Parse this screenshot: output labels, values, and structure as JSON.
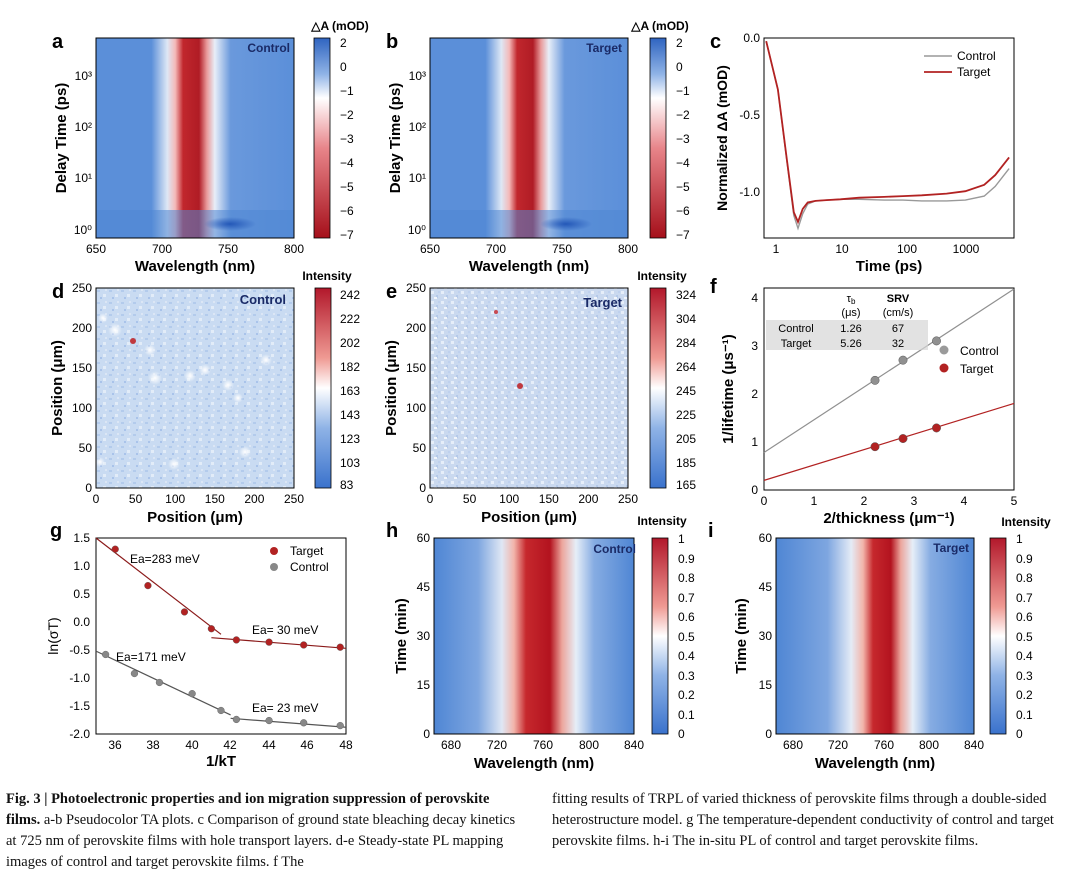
{
  "charts": {
    "a": {
      "letter": "a",
      "cb_title": "△A (mOD)",
      "cb_ticks": [
        "2",
        "0",
        "−1",
        "−2",
        "−3",
        "−4",
        "−5",
        "−6",
        "−7"
      ],
      "x_ticks": [
        "650",
        "700",
        "750",
        "800"
      ],
      "y_ticks": [
        "10⁰",
        "10¹",
        "10²",
        "10³"
      ],
      "xlabel": "Wavelength (nm)",
      "ylabel": "Delay Time (ps)",
      "tag": "Control"
    },
    "b": {
      "letter": "b",
      "cb_title": "△A (mOD)",
      "cb_ticks": [
        "2",
        "0",
        "−1",
        "−2",
        "−3",
        "−4",
        "−5",
        "−6",
        "−7"
      ],
      "x_ticks": [
        "650",
        "700",
        "750",
        "800"
      ],
      "y_ticks": [
        "10⁰",
        "10¹",
        "10²",
        "10³"
      ],
      "xlabel": "Wavelength (nm)",
      "ylabel": "Delay Time (ps)",
      "tag": "Target"
    },
    "c": {
      "letter": "c",
      "x_ticks": [
        "1",
        "10",
        "100",
        "1000"
      ],
      "y_ticks": [
        "0.0",
        "-0.5",
        "-1.0"
      ],
      "xlabel": "Time (ps)",
      "ylabel": "Normalized ΔA (mOD)",
      "legend": [
        "Control",
        "Target"
      ]
    },
    "d": {
      "letter": "d",
      "cb_title": "Intensity",
      "cb_ticks": [
        "242",
        "222",
        "202",
        "182",
        "163",
        "143",
        "123",
        "103",
        "83"
      ],
      "x_ticks": [
        "0",
        "50",
        "100",
        "150",
        "200",
        "250"
      ],
      "y_ticks": [
        "0",
        "50",
        "100",
        "150",
        "200",
        "250"
      ],
      "xlabel": "Position (μm)",
      "ylabel": "Position (μm)",
      "tag": "Control"
    },
    "e": {
      "letter": "e",
      "cb_title": "Intensity",
      "cb_ticks": [
        "324",
        "304",
        "284",
        "264",
        "245",
        "225",
        "205",
        "185",
        "165"
      ],
      "x_ticks": [
        "0",
        "50",
        "100",
        "150",
        "200",
        "250"
      ],
      "y_ticks": [
        "0",
        "50",
        "100",
        "150",
        "200",
        "250"
      ],
      "xlabel": "Position (μm)",
      "ylabel": "Position (μm)",
      "tag": "Target"
    },
    "f": {
      "letter": "f",
      "x_ticks": [
        "0",
        "1",
        "2",
        "3",
        "4",
        "5"
      ],
      "y_ticks": [
        "0",
        "1",
        "2",
        "3",
        "4"
      ],
      "xlabel": "2/thickness (μm⁻¹)",
      "ylabel": "1/lifetime (μs⁻¹)",
      "legend": [
        "Control",
        "Target"
      ],
      "table": {
        "headers": [
          "",
          "τb (μs)",
          "SRV (cm/s)"
        ],
        "rows": [
          [
            "Control",
            "1.26",
            "67"
          ],
          [
            "Target",
            "5.26",
            "32"
          ]
        ]
      }
    },
    "g": {
      "letter": "g",
      "x_ticks": [
        "36",
        "38",
        "40",
        "42",
        "44",
        "46",
        "48"
      ],
      "y_ticks": [
        "1.5",
        "1.0",
        "0.5",
        "0.0",
        "-0.5",
        "-1.0",
        "-1.5",
        "-2.0"
      ],
      "xlabel": "1/kT",
      "ylabel": "ln(σT)",
      "legend": [
        "Target",
        "Control"
      ],
      "annotations": [
        "Ea=283 meV",
        "Ea= 30 meV",
        "Ea=171 meV",
        "Ea= 23 meV"
      ]
    },
    "h": {
      "letter": "h",
      "cb_title": "Intensity",
      "cb_ticks": [
        "1",
        "0.9",
        "0.8",
        "0.7",
        "0.6",
        "0.5",
        "0.4",
        "0.3",
        "0.2",
        "0.1",
        "0"
      ],
      "x_ticks": [
        "680",
        "720",
        "760",
        "800",
        "840"
      ],
      "y_ticks": [
        "0",
        "15",
        "30",
        "45",
        "60"
      ],
      "xlabel": "Wavelength (nm)",
      "ylabel": "Time (min)",
      "tag": "Control"
    },
    "i": {
      "letter": "i",
      "cb_title": "Intensity",
      "cb_ticks": [
        "1",
        "0.9",
        "0.8",
        "0.7",
        "0.6",
        "0.5",
        "0.4",
        "0.3",
        "0.2",
        "0.1",
        "0"
      ],
      "x_ticks": [
        "680",
        "720",
        "760",
        "800",
        "840"
      ],
      "y_ticks": [
        "0",
        "15",
        "30",
        "45",
        "60"
      ],
      "xlabel": "Wavelength (nm)",
      "ylabel": "Time (min)",
      "tag": "Target"
    }
  },
  "chart_data": [
    {
      "panel": "c",
      "type": "line",
      "x_scale": "log",
      "xlim": [
        0.6,
        6000
      ],
      "ylim": [
        -1.22,
        0.02
      ],
      "series": [
        {
          "name": "Control",
          "color": "#999999",
          "x": [
            0.65,
            1.0,
            1.4,
            1.8,
            2.1,
            2.5,
            3,
            4,
            6,
            10,
            20,
            50,
            100,
            200,
            500,
            1000,
            2000,
            3000,
            5000
          ],
          "y": [
            0.0,
            -0.3,
            -0.75,
            -1.08,
            -1.16,
            -1.07,
            -1.01,
            -0.99,
            -0.985,
            -0.98,
            -0.98,
            -0.985,
            -0.985,
            -0.99,
            -0.99,
            -0.985,
            -0.96,
            -0.9,
            -0.79
          ]
        },
        {
          "name": "Target",
          "color": "#b22222",
          "x": [
            0.65,
            1.0,
            1.4,
            1.8,
            2.1,
            2.5,
            3,
            4,
            6,
            10,
            20,
            50,
            100,
            200,
            500,
            1000,
            2000,
            3000,
            5000
          ],
          "y": [
            0.0,
            -0.3,
            -0.74,
            -1.06,
            -1.12,
            -1.04,
            -1.0,
            -0.99,
            -0.985,
            -0.98,
            -0.97,
            -0.965,
            -0.96,
            -0.955,
            -0.945,
            -0.93,
            -0.89,
            -0.83,
            -0.72
          ]
        }
      ]
    },
    {
      "panel": "f",
      "type": "scatter",
      "xlim": [
        0,
        5
      ],
      "ylim": [
        0,
        4.2
      ],
      "series": [
        {
          "name": "Control",
          "color": "#909090",
          "x": [
            2.22,
            2.78,
            3.45
          ],
          "y": [
            2.28,
            2.7,
            3.1
          ],
          "fit": [
            0.78,
            0.68
          ]
        },
        {
          "name": "Target",
          "color": "#b22222",
          "x": [
            2.22,
            2.78,
            3.45
          ],
          "y": [
            0.9,
            1.07,
            1.29
          ],
          "fit": [
            0.2,
            0.32
          ]
        }
      ]
    },
    {
      "panel": "g",
      "type": "scatter",
      "xlim": [
        35,
        48
      ],
      "ylim": [
        -2.0,
        1.5
      ],
      "series": [
        {
          "name": "Target",
          "color": "#b22222",
          "x": [
            36.0,
            37.7,
            39.6,
            41.0,
            42.3,
            44.0,
            45.8,
            47.7
          ],
          "y": [
            1.3,
            0.65,
            0.18,
            -0.12,
            -0.32,
            -0.36,
            -0.41,
            -0.45
          ]
        },
        {
          "name": "Control",
          "color": "#888888",
          "x": [
            35.5,
            37.0,
            38.3,
            40.0,
            41.5,
            42.3,
            44.0,
            45.8,
            47.7
          ],
          "y": [
            -0.58,
            -0.92,
            -1.08,
            -1.28,
            -1.58,
            -1.74,
            -1.76,
            -1.8,
            -1.85
          ]
        }
      ]
    }
  ],
  "colors": {
    "blue": "#4a7fd1",
    "red": "#b2182b",
    "gray_line": "#999999",
    "red_line": "#b22222"
  },
  "caption": {
    "col1_bold": "Fig. 3 | Photoelectronic properties and ion migration suppression of perovskite films.",
    "col1_rest": "a-b Pseudocolor TA plots. c Comparison of ground state bleaching decay kinetics at 725 nm of perovskite films with hole transport layers. d-e Steady-state PL mapping images of control and target perovskite films. f The",
    "col2": "fitting results of TRPL of varied thickness of perovskite films through a double-sided heterostructure model. g The temperature-dependent conductivity of control and target perovskite films. h-i The in-situ PL of control and target perovskite films."
  }
}
